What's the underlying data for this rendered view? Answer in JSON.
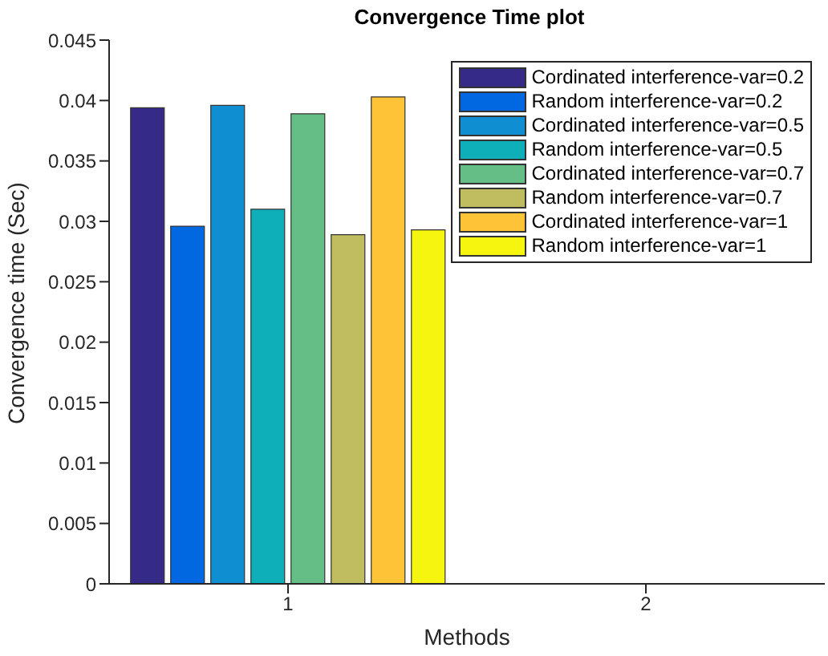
{
  "chart_data": {
    "type": "bar",
    "title": "Convergence Time plot",
    "xlabel": "Methods",
    "ylabel": "Convergence time (Sec)",
    "categories": [
      "1",
      "2"
    ],
    "series": [
      {
        "name": "Cordinated interference-var=0.2",
        "color": "#352a87",
        "values": [
          0.0394,
          null
        ]
      },
      {
        "name": "Random interference-var=0.2",
        "color": "#0268e1",
        "values": [
          0.0296,
          null
        ]
      },
      {
        "name": "Cordinated interference-var=0.5",
        "color": "#108ed2",
        "values": [
          0.0396,
          null
        ]
      },
      {
        "name": "Random interference-var=0.5",
        "color": "#0fafb9",
        "values": [
          0.031,
          null
        ]
      },
      {
        "name": "Cordinated interference-var=0.7",
        "color": "#65be86",
        "values": [
          0.0389,
          null
        ]
      },
      {
        "name": "Random interference-var=0.7",
        "color": "#c0bc60",
        "values": [
          0.0289,
          null
        ]
      },
      {
        "name": "Cordinated interference-var=1",
        "color": "#ffc337",
        "values": [
          0.0403,
          null
        ]
      },
      {
        "name": "Random interference-var=1",
        "color": "#f6f50f",
        "values": [
          0.0293,
          null
        ]
      }
    ],
    "ylim": [
      0,
      0.045
    ],
    "yticks": [
      0,
      0.005,
      0.01,
      0.015,
      0.02,
      0.025,
      0.03,
      0.035,
      0.04,
      0.045
    ],
    "grid": false,
    "legend": "top right"
  }
}
